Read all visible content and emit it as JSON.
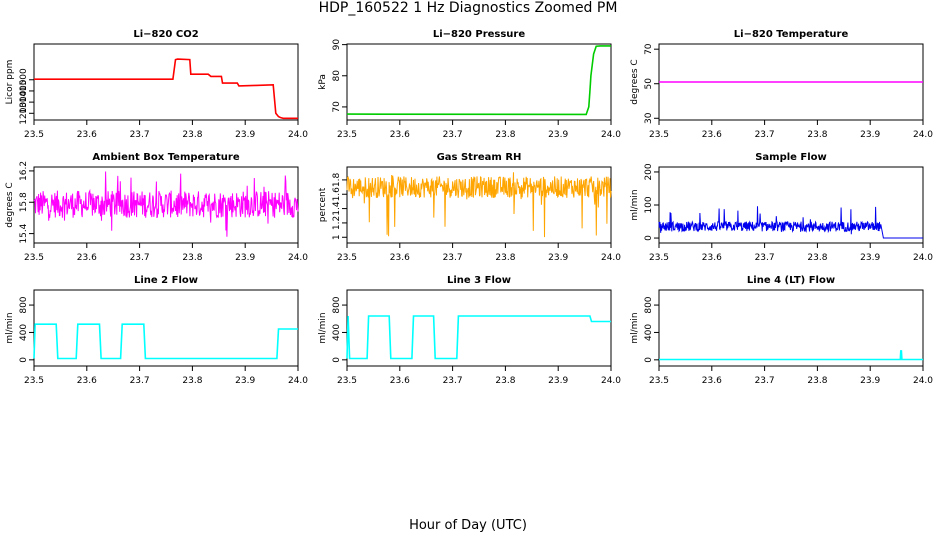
{
  "page": {
    "title": "HDP_160522  1 Hz Diagnostics Zoomed PM",
    "x_axis_title": "Hour of Day (UTC)"
  },
  "chart_data": [
    {
      "type": "line",
      "title": "Li−820 CO2",
      "ylabel": "Licor ppm",
      "color": "#ff0000",
      "xlim": [
        23.5,
        24.0
      ],
      "ylim": [
        1140,
        1820
      ],
      "yticks": [
        1200,
        1300,
        1400,
        1500
      ],
      "x": [
        23.5,
        23.763,
        23.768,
        23.772,
        23.795,
        23.797,
        23.83,
        23.835,
        23.855,
        23.857,
        23.885,
        23.888,
        23.92,
        23.953,
        23.958,
        23.963,
        23.968,
        23.972,
        24.0
      ],
      "y": [
        1505,
        1505,
        1680,
        1685,
        1680,
        1550,
        1550,
        1530,
        1530,
        1470,
        1470,
        1445,
        1450,
        1455,
        1200,
        1170,
        1160,
        1155,
        1155
      ]
    },
    {
      "type": "line",
      "title": "Li−820 Pressure",
      "ylabel": "kPa",
      "color": "#00cc00",
      "xlim": [
        23.5,
        24.0
      ],
      "ylim": [
        65.8,
        90.2
      ],
      "yticks": [
        70,
        80,
        90
      ],
      "x": [
        23.5,
        23.95,
        23.953,
        23.958,
        23.96,
        23.962,
        23.967,
        23.972,
        23.98,
        24.0
      ],
      "y": [
        67.7,
        67.6,
        67.6,
        70,
        75,
        80,
        87,
        89.5,
        89.6,
        89.6
      ]
    },
    {
      "type": "line",
      "title": "Li−820 Temperature",
      "ylabel": "degrees C",
      "color": "#ff00ff",
      "xlim": [
        23.5,
        24.0
      ],
      "ylim": [
        29,
        73
      ],
      "yticks": [
        30,
        50,
        70
      ],
      "x": [
        23.5,
        24.0
      ],
      "y": [
        51,
        51
      ]
    },
    {
      "type": "line",
      "title": "Ambient Box Temperature",
      "ylabel": "degrees C",
      "color": "#ff00ff",
      "xlim": [
        23.5,
        24.0
      ],
      "ylim": [
        15.28,
        16.25
      ],
      "yticks": [
        15.4,
        15.8,
        16.2
      ],
      "noisy": true,
      "band": [
        15.6,
        15.95
      ],
      "spike_range": [
        15.35,
        16.2
      ]
    },
    {
      "type": "line",
      "title": "Gas Stream RH",
      "ylabel": "percent",
      "color": "#ffa500",
      "xlim": [
        23.5,
        24.0
      ],
      "ylim": [
        0.92,
        1.98
      ],
      "yticks": [
        1.0,
        1.2,
        1.4,
        1.6,
        1.8
      ],
      "noisy": true,
      "band": [
        1.55,
        1.85
      ],
      "spike_range": [
        0.98,
        1.92
      ]
    },
    {
      "type": "line",
      "title": "Sample Flow",
      "ylabel": "ml/min",
      "color": "#0000ee",
      "xlim": [
        23.5,
        24.0
      ],
      "ylim": [
        -15,
        215
      ],
      "yticks": [
        0,
        100,
        200
      ],
      "x": [
        23.5,
        23.92,
        23.925,
        24.0
      ],
      "y": [
        35,
        35,
        0,
        0
      ],
      "noisy": true,
      "band": [
        20,
        50
      ],
      "spike_range": [
        10,
        100
      ],
      "noise_until": 23.92
    },
    {
      "type": "line",
      "title": "Line 2 Flow",
      "ylabel": "ml/min",
      "color": "#00ffff",
      "xlim": [
        23.5,
        24.0
      ],
      "ylim": [
        -90,
        1020
      ],
      "yticks": [
        0,
        400,
        800
      ],
      "x": [
        23.5,
        23.502,
        23.542,
        23.545,
        23.58,
        23.583,
        23.624,
        23.627,
        23.664,
        23.667,
        23.708,
        23.711,
        23.96,
        23.963,
        24.0
      ],
      "y": [
        20,
        520,
        520,
        20,
        20,
        520,
        520,
        20,
        20,
        520,
        520,
        20,
        20,
        450,
        450
      ]
    },
    {
      "type": "line",
      "title": "Line 3 Flow",
      "ylabel": "ml/min",
      "color": "#00ffff",
      "xlim": [
        23.5,
        24.0
      ],
      "ylim": [
        -90,
        1020
      ],
      "yticks": [
        0,
        400,
        800
      ],
      "x": [
        23.5,
        23.502,
        23.505,
        23.538,
        23.541,
        23.58,
        23.583,
        23.623,
        23.626,
        23.664,
        23.667,
        23.708,
        23.711,
        23.96,
        23.963,
        24.0
      ],
      "y": [
        20,
        640,
        20,
        20,
        640,
        640,
        20,
        20,
        640,
        640,
        20,
        20,
        640,
        640,
        560,
        560
      ]
    },
    {
      "type": "line",
      "title": "Line 4 (LT) Flow",
      "ylabel": "ml/min",
      "color": "#00ffff",
      "xlim": [
        23.5,
        24.0
      ],
      "ylim": [
        -90,
        1020
      ],
      "yticks": [
        0,
        400,
        800
      ],
      "x": [
        23.5,
        23.957,
        23.958,
        23.959,
        23.96,
        23.961,
        24.0
      ],
      "y": [
        5,
        5,
        130,
        130,
        5,
        5,
        5
      ]
    }
  ]
}
